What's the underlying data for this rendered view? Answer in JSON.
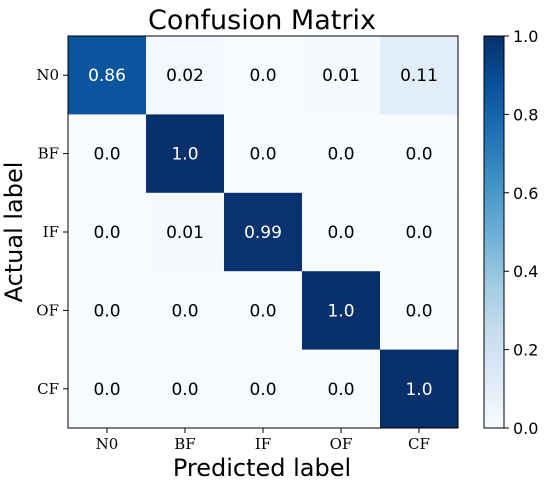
{
  "chart_data": {
    "type": "heatmap",
    "title": "Confusion Matrix",
    "xlabel": "Predicted label",
    "ylabel": "Actual label",
    "x_categories": [
      "N0",
      "BF",
      "IF",
      "OF",
      "CF"
    ],
    "y_categories": [
      "N0",
      "BF",
      "IF",
      "OF",
      "CF"
    ],
    "values": [
      [
        0.86,
        0.02,
        0.0,
        0.01,
        0.11
      ],
      [
        0.0,
        1.0,
        0.0,
        0.0,
        0.0
      ],
      [
        0.0,
        0.01,
        0.99,
        0.0,
        0.0
      ],
      [
        0.0,
        0.0,
        0.0,
        1.0,
        0.0
      ],
      [
        0.0,
        0.0,
        0.0,
        0.0,
        1.0
      ]
    ],
    "value_labels": [
      [
        "0.86",
        "0.02",
        "0.0",
        "0.01",
        "0.11"
      ],
      [
        "0.0",
        "1.0",
        "0.0",
        "0.0",
        "0.0"
      ],
      [
        "0.0",
        "0.01",
        "0.99",
        "0.0",
        "0.0"
      ],
      [
        "0.0",
        "0.0",
        "0.0",
        "1.0",
        "0.0"
      ],
      [
        "0.0",
        "0.0",
        "0.0",
        "0.0",
        "1.0"
      ]
    ],
    "colorbar": {
      "range": [
        0.0,
        1.0
      ],
      "ticks": [
        "0.0",
        "0.2",
        "0.4",
        "0.6",
        "0.8",
        "1.0"
      ],
      "colormap": "Blues"
    }
  }
}
